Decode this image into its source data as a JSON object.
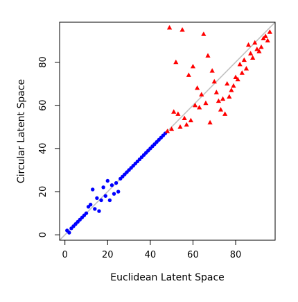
{
  "chart_data": {
    "type": "scatter",
    "title": "",
    "xlabel": "Euclidean Latent Space",
    "ylabel": "Circular Latent Space",
    "xlim": [
      -2.5,
      98.5
    ],
    "ylim": [
      -2.5,
      98.5
    ],
    "x_ticks": [
      0,
      20,
      40,
      60,
      80
    ],
    "y_ticks": [
      0,
      20,
      40,
      60,
      80
    ],
    "grid": false,
    "legend": "none",
    "reference_line": {
      "slope": 1,
      "intercept": 0,
      "color": "#c0c0c0"
    },
    "series": [
      {
        "marker": "circle",
        "color": "#0000ff",
        "points": [
          [
            1,
            2
          ],
          [
            2,
            1
          ],
          [
            3,
            3
          ],
          [
            4,
            4
          ],
          [
            5,
            5
          ],
          [
            6,
            6
          ],
          [
            7,
            7
          ],
          [
            8,
            8
          ],
          [
            9,
            9
          ],
          [
            10,
            10
          ],
          [
            11,
            13
          ],
          [
            12,
            14
          ],
          [
            13,
            21
          ],
          [
            14,
            12
          ],
          [
            15,
            17
          ],
          [
            16,
            11
          ],
          [
            17,
            16
          ],
          [
            18,
            22
          ],
          [
            19,
            18
          ],
          [
            20,
            25
          ],
          [
            21,
            16
          ],
          [
            22,
            23
          ],
          [
            23,
            19
          ],
          [
            24,
            24
          ],
          [
            25,
            20
          ],
          [
            26,
            26
          ],
          [
            27,
            27
          ],
          [
            28,
            28
          ],
          [
            29,
            29
          ],
          [
            30,
            30
          ],
          [
            31,
            31
          ],
          [
            32,
            32
          ],
          [
            33,
            33
          ],
          [
            34,
            34
          ],
          [
            35,
            35
          ],
          [
            36,
            36
          ],
          [
            37,
            37
          ],
          [
            38,
            38
          ],
          [
            39,
            39
          ],
          [
            40,
            40
          ],
          [
            41,
            41
          ],
          [
            42,
            42
          ],
          [
            43,
            43
          ],
          [
            44,
            44
          ],
          [
            45,
            45
          ],
          [
            46,
            46
          ],
          [
            47,
            47
          ]
        ]
      },
      {
        "marker": "triangle",
        "color": "#ff0000",
        "points": [
          [
            48,
            48
          ],
          [
            49,
            96
          ],
          [
            50,
            49
          ],
          [
            51,
            57
          ],
          [
            52,
            80
          ],
          [
            53,
            56
          ],
          [
            54,
            50
          ],
          [
            55,
            95
          ],
          [
            56,
            54
          ],
          [
            57,
            51
          ],
          [
            58,
            74
          ],
          [
            59,
            53
          ],
          [
            60,
            78
          ],
          [
            61,
            60
          ],
          [
            62,
            68
          ],
          [
            63,
            59
          ],
          [
            64,
            65
          ],
          [
            65,
            93
          ],
          [
            66,
            61
          ],
          [
            67,
            83
          ],
          [
            68,
            52
          ],
          [
            69,
            76
          ],
          [
            70,
            71
          ],
          [
            71,
            66
          ],
          [
            72,
            62
          ],
          [
            73,
            58
          ],
          [
            74,
            63
          ],
          [
            75,
            56
          ],
          [
            76,
            70
          ],
          [
            77,
            64
          ],
          [
            78,
            67
          ],
          [
            79,
            69
          ],
          [
            80,
            73
          ],
          [
            81,
            72
          ],
          [
            82,
            79
          ],
          [
            83,
            75
          ],
          [
            84,
            81
          ],
          [
            85,
            77
          ],
          [
            86,
            88
          ],
          [
            87,
            84
          ],
          [
            88,
            82
          ],
          [
            89,
            89
          ],
          [
            90,
            86
          ],
          [
            91,
            85
          ],
          [
            92,
            87
          ],
          [
            93,
            91
          ],
          [
            94,
            92
          ],
          [
            95,
            90
          ],
          [
            96,
            94
          ]
        ]
      }
    ]
  }
}
